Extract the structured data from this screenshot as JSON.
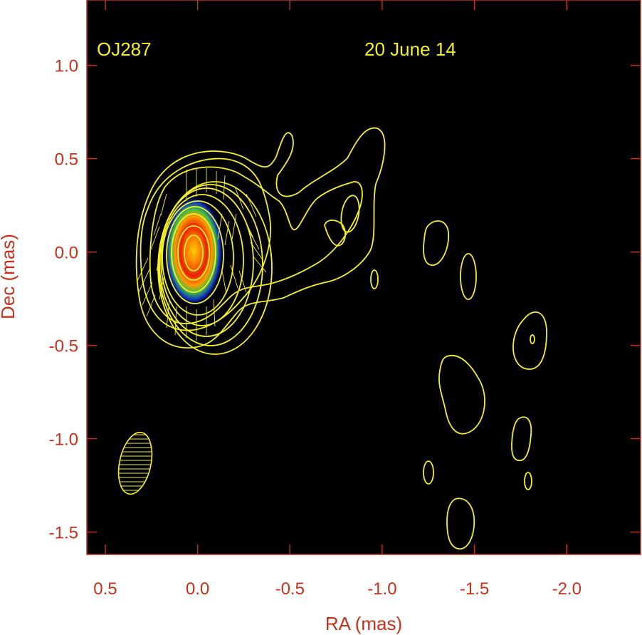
{
  "chart_data": {
    "type": "contour",
    "xlabel": "RA (mas)",
    "ylabel": "Dec (mas)",
    "xlim": [
      0.6,
      -2.4
    ],
    "ylim": [
      -1.62,
      1.35
    ],
    "xticks": [
      0.5,
      0.0,
      -0.5,
      -1.0,
      -1.5,
      -2.0
    ],
    "xtick_labels": [
      "0.5",
      "0.0",
      "-0.5",
      "-1.0",
      "-1.5",
      "-2.0"
    ],
    "yticks": [
      1.0,
      0.5,
      0.0,
      -0.5,
      -1.0,
      -1.5
    ],
    "ytick_labels": [
      "1.0",
      "0.5",
      "0.0",
      "-0.5",
      "-1.0",
      "-1.5"
    ],
    "annotations": [
      {
        "text": "OJ287",
        "x": 0.52,
        "y": 1.1
      },
      {
        "text": "20 June 14",
        "x": -0.92,
        "y": 1.1
      }
    ],
    "core": {
      "x": 0.0,
      "y": 0.0
    },
    "beam": {
      "x": 0.33,
      "y": -1.13,
      "major_mas": 0.33,
      "minor_mas": 0.16,
      "pa_deg": -12
    },
    "colors": {
      "background": "#000000",
      "contour": "#f5f02a",
      "axis_text": "#c8301c",
      "annotation_text": "#f5f02a",
      "frame": "#c8301c"
    }
  }
}
